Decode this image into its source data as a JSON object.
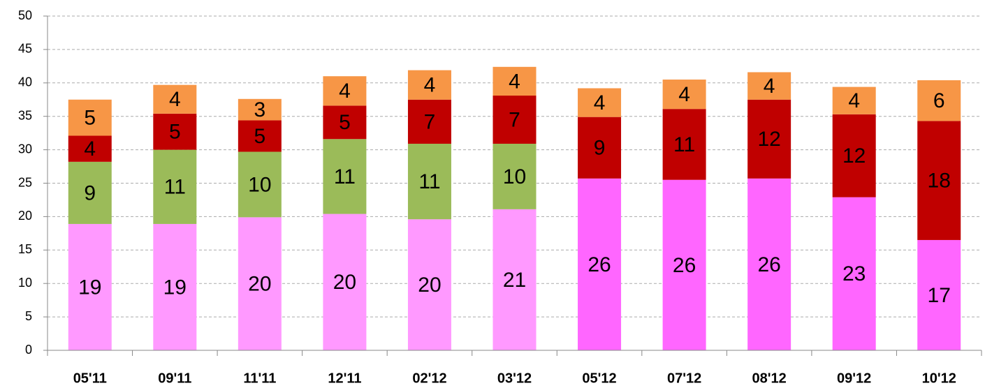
{
  "chart_data": {
    "type": "stacked_bar",
    "categories": [
      "05'11",
      "09'11",
      "11'11",
      "12'11",
      "02'12",
      "03'12",
      "05'12",
      "07'12",
      "08'12",
      "09'12",
      "10'12"
    ],
    "series": [
      {
        "color": "#ff99ff",
        "colors": [
          "#ff99ff",
          "#ff99ff",
          "#ff99ff",
          "#ff99ff",
          "#ff99ff",
          "#ff99ff",
          "#ff66ff",
          "#ff66ff",
          "#ff66ff",
          "#ff66ff",
          "#ff66ff"
        ],
        "values": [
          18.9,
          18.9,
          19.9,
          20.4,
          19.6,
          21.1,
          25.7,
          25.5,
          25.7,
          22.9,
          16.5
        ],
        "value_labels": [
          "19",
          "19",
          "20",
          "20",
          "20",
          "21",
          "26",
          "26",
          "26",
          "23",
          "17"
        ]
      },
      {
        "color": "#9bbb59",
        "values": [
          9.3,
          11.1,
          9.8,
          11.2,
          11.3,
          9.8,
          null,
          null,
          null,
          null,
          null
        ],
        "value_labels": [
          "9",
          "11",
          "10",
          "11",
          "11",
          "10",
          null,
          null,
          null,
          null,
          null
        ]
      },
      {
        "color": "#c00000",
        "values": [
          3.9,
          5.4,
          4.7,
          5.0,
          6.6,
          7.2,
          9.2,
          10.6,
          11.8,
          12.4,
          17.8
        ],
        "value_labels": [
          "4",
          "5",
          "5",
          "5",
          "7",
          "7",
          "9",
          "11",
          "12",
          "12",
          "18"
        ]
      },
      {
        "color": "#f79646",
        "values": [
          5.4,
          4.3,
          3.2,
          4.4,
          4.4,
          4.3,
          4.3,
          4.4,
          4.1,
          4.1,
          6.1
        ],
        "value_labels": [
          "5",
          "4",
          "3",
          "4",
          "4",
          "4",
          "4",
          "4",
          "4",
          "4",
          "6"
        ]
      }
    ],
    "ylim": [
      0,
      50
    ],
    "yticks": [
      0,
      5,
      10,
      15,
      20,
      25,
      30,
      35,
      40,
      45,
      50
    ],
    "grid": true
  }
}
